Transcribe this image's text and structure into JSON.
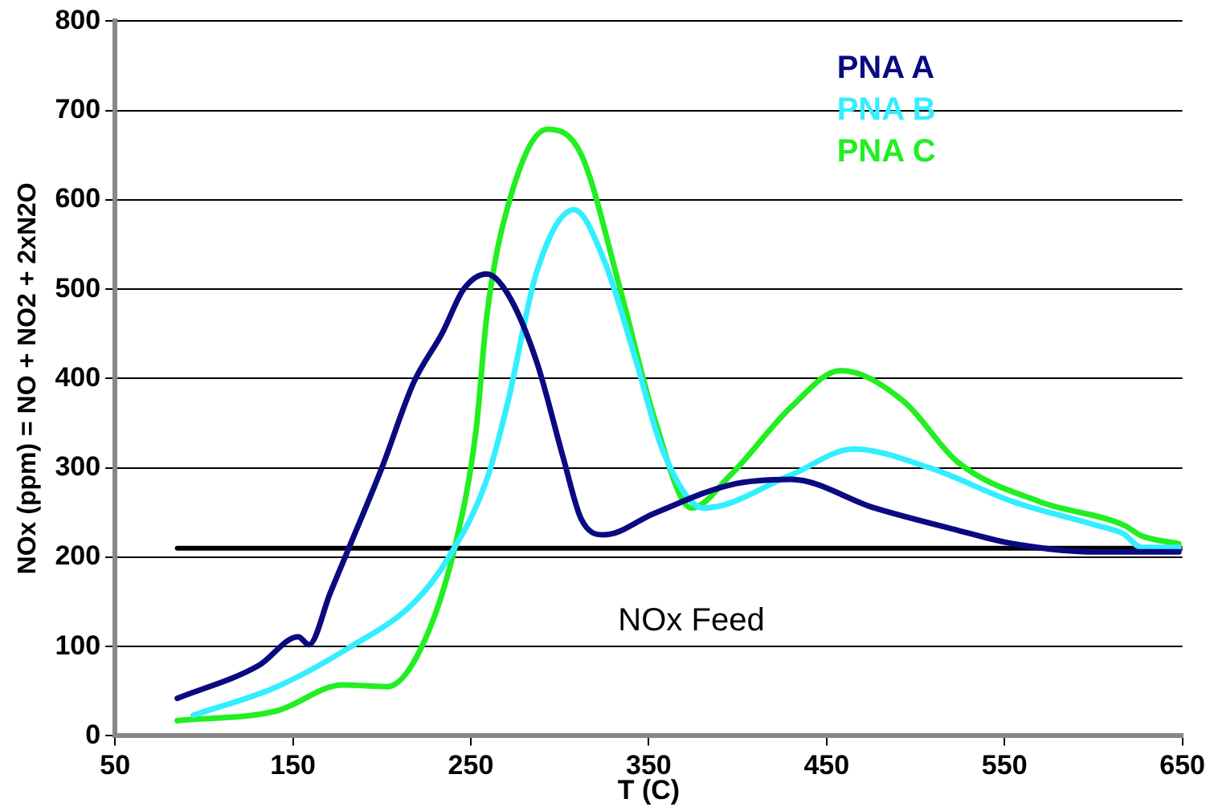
{
  "chart_data": {
    "type": "line",
    "xlabel": "T (C)",
    "ylabel": "NOx (ppm) = NO + NO2 + 2xN2O",
    "xlim": [
      50,
      650
    ],
    "xticks": [
      50,
      150,
      250,
      350,
      450,
      550,
      650
    ],
    "ylim": [
      0,
      800
    ],
    "yticks": [
      0,
      100,
      200,
      300,
      400,
      500,
      600,
      700,
      800
    ],
    "grid": "y",
    "legend": "top right",
    "marker": "none",
    "line_style": "solid",
    "annotations": [
      "NOx Feed"
    ],
    "series": [
      {
        "name": "PNA A",
        "color": "#0a0a80",
        "x": [
          85,
          131,
          153,
          159,
          171,
          181,
          200,
          218,
          234,
          246,
          259,
          271,
          287,
          302,
          312,
          325,
          353,
          396,
          430,
          477,
          524,
          555,
          601,
          648
        ],
        "values": [
          42,
          79,
          111,
          102,
          160,
          208,
          300,
          396,
          451,
          500,
          517,
          494,
          419,
          311,
          243,
          225,
          249,
          281,
          287,
          255,
          230,
          215,
          206,
          206
        ]
      },
      {
        "name": "PNA B",
        "color": "#33eeff",
        "x": [
          94,
          141,
          181,
          218,
          237,
          259,
          271,
          287,
          308,
          325,
          343,
          358,
          381,
          430,
          465,
          508,
          555,
          601,
          617,
          627,
          648
        ],
        "values": [
          23,
          55,
          98,
          149,
          198,
          287,
          375,
          519,
          589,
          532,
          419,
          319,
          255,
          292,
          321,
          300,
          262,
          236,
          226,
          211,
          211
        ]
      },
      {
        "name": "PNA C",
        "color": "#22ee22",
        "x": [
          85,
          141,
          178,
          203,
          222,
          241,
          253,
          259,
          271,
          293,
          312,
          334,
          353,
          374,
          396,
          430,
          458,
          493,
          524,
          570,
          617,
          627,
          648
        ],
        "values": [
          17,
          28,
          57,
          55,
          98,
          211,
          343,
          470,
          594,
          679,
          651,
          500,
          357,
          255,
          292,
          368,
          409,
          375,
          306,
          262,
          236,
          224,
          215
        ]
      },
      {
        "color": "#000000",
        "x": [
          85,
          650
        ],
        "values": [
          210,
          210
        ]
      }
    ]
  }
}
